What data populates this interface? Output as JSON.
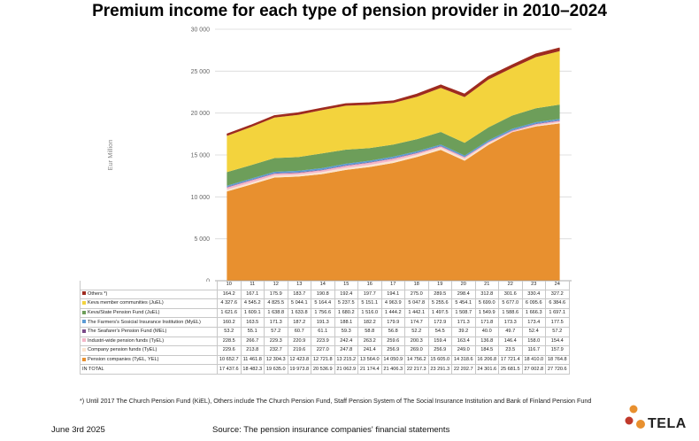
{
  "page": {
    "title": "Premium income for each type of pension provider in 2010–2024",
    "footnote": "*) Until 2017 The Church Pension Fund (KiEL), Others include The Church Pension Fund, Staff Pension System of The Social Insurance Institution and Bank of Finland Pension Fund",
    "date": "June 3rd 2025",
    "source": "Source: The pension insurance companies' financial statements",
    "logo_text": "TELA"
  },
  "chart_data": {
    "type": "area",
    "stacked": true,
    "ylabel": "Eur Million",
    "ylim": [
      0,
      30000
    ],
    "yticks": [
      "0",
      "5 000",
      "10 000",
      "15 000",
      "20 000",
      "25 000",
      "30 000"
    ],
    "ytick_values": [
      0,
      5000,
      10000,
      15000,
      20000,
      25000,
      30000
    ],
    "grid": true,
    "x": [
      "10",
      "11",
      "12",
      "13",
      "14",
      "15",
      "16",
      "17",
      "18",
      "19",
      "20",
      "21",
      "22",
      "23",
      "24"
    ],
    "series": [
      {
        "name": "Pension companies (TyEL, YEL)",
        "color": "#e8902f",
        "display": [
          "10 652.7",
          "11 461.8",
          "12 304.3",
          "12 423.8",
          "12 721.8",
          "13 215.2",
          "13 564.0",
          "14 050.9",
          "14 756.2",
          "15 605.0",
          "14 318.6",
          "16 206.8",
          "17 721.4",
          "18 410.0",
          "18 764.8"
        ],
        "values": [
          10652.7,
          11461.8,
          12304.3,
          12423.8,
          12721.8,
          13215.2,
          13564.0,
          14050.9,
          14756.2,
          15605.0,
          14318.6,
          16206.8,
          17721.4,
          18410.0,
          18764.8
        ]
      },
      {
        "name": "Company pension funds (TyEL)",
        "color": "#fbe4cf",
        "display": [
          "229.6",
          "213.8",
          "232.7",
          "219.6",
          "227.0",
          "247.8",
          "241.4",
          "256.9",
          "269.0",
          "256.9",
          "249.0",
          "184.5",
          "23.5",
          "116.7",
          "157.9"
        ],
        "values": [
          229.6,
          213.8,
          232.7,
          219.6,
          227.0,
          247.8,
          241.4,
          256.9,
          269.0,
          256.9,
          249.0,
          184.5,
          23.5,
          116.7,
          157.9
        ]
      },
      {
        "name": "Industri-wide pension funds (TyEL)",
        "color": "#f4b6c8",
        "display": [
          "228.5",
          "266.7",
          "229.3",
          "220.9",
          "223.9",
          "242.4",
          "263.2",
          "259.6",
          "200.3",
          "159.4",
          "163.4",
          "136.8",
          "146.4",
          "158.0",
          "154.4"
        ],
        "values": [
          228.5,
          266.7,
          229.3,
          220.9,
          223.9,
          242.4,
          263.2,
          259.6,
          200.3,
          159.4,
          163.4,
          136.8,
          146.4,
          158.0,
          154.4
        ]
      },
      {
        "name": "The Seafarer's Pension Fund (MEL)",
        "color": "#7a4a88",
        "display": [
          "53.2",
          "55.1",
          "57.2",
          "60.7",
          "61.1",
          "59.3",
          "58.8",
          "56.8",
          "52.2",
          "54.5",
          "39.2",
          "40.0",
          "49.7",
          "52.4",
          "57.2"
        ],
        "values": [
          53.2,
          55.1,
          57.2,
          60.7,
          61.1,
          59.3,
          58.8,
          56.8,
          52.2,
          54.5,
          39.2,
          40.0,
          49.7,
          52.4,
          57.2
        ]
      },
      {
        "name": "The Farmers's Sosicial Insurance Institution (MyEL)",
        "color": "#5b9bd5",
        "display": [
          "160.2",
          "163.5",
          "171.3",
          "187.2",
          "191.3",
          "188.1",
          "182.2",
          "179.9",
          "174.7",
          "172.9",
          "171.3",
          "171.8",
          "173.3",
          "173.4",
          "177.5"
        ],
        "values": [
          160.2,
          163.5,
          171.3,
          187.2,
          191.3,
          188.1,
          182.2,
          179.9,
          174.7,
          172.9,
          171.3,
          171.8,
          173.3,
          173.4,
          177.5
        ]
      },
      {
        "name": "Keva/State Pension Fund (JuEL)",
        "color": "#6d9e5a",
        "display": [
          "1 621.6",
          "1 609.1",
          "1 638.8",
          "1 633.8",
          "1 756.6",
          "1 680.2",
          "1 516.0",
          "1 444.2",
          "1 442.1",
          "1 497.5",
          "1 508.7",
          "1 549.9",
          "1 588.6",
          "1 666.3",
          "1 697.1"
        ],
        "values": [
          1621.6,
          1609.1,
          1638.8,
          1633.8,
          1756.6,
          1680.2,
          1516.0,
          1444.2,
          1442.1,
          1497.5,
          1508.7,
          1549.9,
          1588.6,
          1666.3,
          1697.1
        ]
      },
      {
        "name": "Keva member communities (JuEL)",
        "color": "#f3d33d",
        "display": [
          "4 327.6",
          "4 545.2",
          "4 825.5",
          "5 044.1",
          "5 164.4",
          "5 237.5",
          "5 151.1",
          "4 963.9",
          "5 047.8",
          "5 255.6",
          "5 454.1",
          "5 699.0",
          "5 677.0",
          "6 095.6",
          "6 384.6"
        ],
        "values": [
          4327.6,
          4545.2,
          4825.5,
          5044.1,
          5164.4,
          5237.5,
          5151.1,
          4963.9,
          5047.8,
          5255.6,
          5454.1,
          5699.0,
          5677.0,
          6095.6,
          6384.6
        ]
      },
      {
        "name": "Others *)",
        "color": "#9e2b1f",
        "display": [
          "164.2",
          "167.1",
          "175.9",
          "183.7",
          "190.8",
          "192.4",
          "197.7",
          "194.1",
          "275.0",
          "289.5",
          "298.4",
          "312.8",
          "301.6",
          "330.4",
          "327.2"
        ],
        "values": [
          164.2,
          167.1,
          175.9,
          183.7,
          190.8,
          192.4,
          197.7,
          194.1,
          275.0,
          289.5,
          298.4,
          312.8,
          301.6,
          330.4,
          327.2
        ]
      }
    ],
    "total": {
      "name": "IN TOTAL",
      "display": [
        "17 437.6",
        "18 482.3",
        "19 635.0",
        "19 973.8",
        "20 536.9",
        "21 062.9",
        "21 174.4",
        "21 406.3",
        "22 217.3",
        "23 291.3",
        "22 202.7",
        "24 301.6",
        "25 681.5",
        "27 002.8",
        "27 720.6"
      ]
    }
  }
}
